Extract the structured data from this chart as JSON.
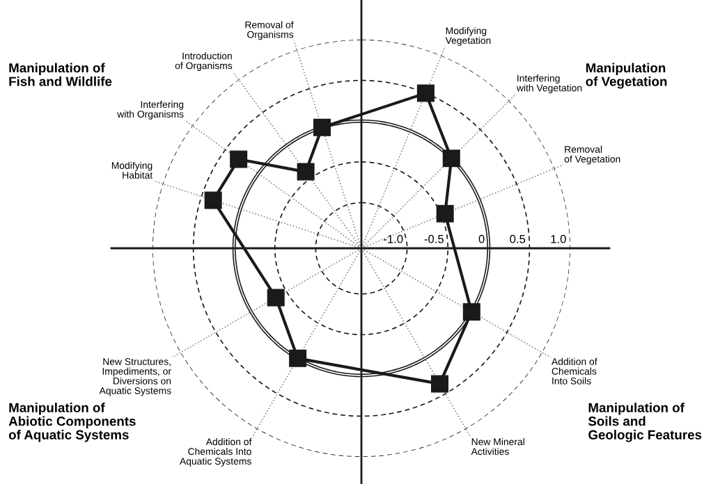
{
  "chart_data": {
    "type": "radar",
    "categories": [
      "Modifying\nVegetation",
      "Interfering\nwith Vegetation",
      "Removal\nof Vegetation",
      "Addition of\nChemicals\nInto Soils",
      "New Mineral\nActivities",
      "Addition of\nChemicals Into\nAquatic Systems",
      "New Structures,\nImpediments, or\nDiversions on\nAquatic Systems",
      "Modifying\nHabitat",
      "Interfering\nwith Organisms",
      "Introduction\nof Organisms",
      "Removal of\nOrganisms"
    ],
    "series": [
      {
        "color": "#1a1a1a",
        "values": [
          0.5,
          0.0,
          -0.45,
          0.0,
          0.36,
          0.0,
          -0.35,
          0.35,
          0.3,
          -0.4,
          0.0
        ]
      }
    ],
    "ylim": [
      -1.56,
      1.0
    ],
    "yticks": [
      {
        "value": -1.0,
        "label": "-1.0"
      },
      {
        "value": -0.5,
        "label": "-0.5"
      },
      0,
      0.5,
      {
        "value": 1.0,
        "label": "1.0"
      }
    ],
    "grid": true,
    "marker": "square",
    "line_style": "solid",
    "annotations": [
      "Manipulation of\nFish and Wildlife",
      "Manipulation\nof Vegetation",
      "Manipulation of\nAbiotic Components\nof Aquatic Systems",
      "Manipulation of\nSoils and\nGeologic Features"
    ]
  }
}
